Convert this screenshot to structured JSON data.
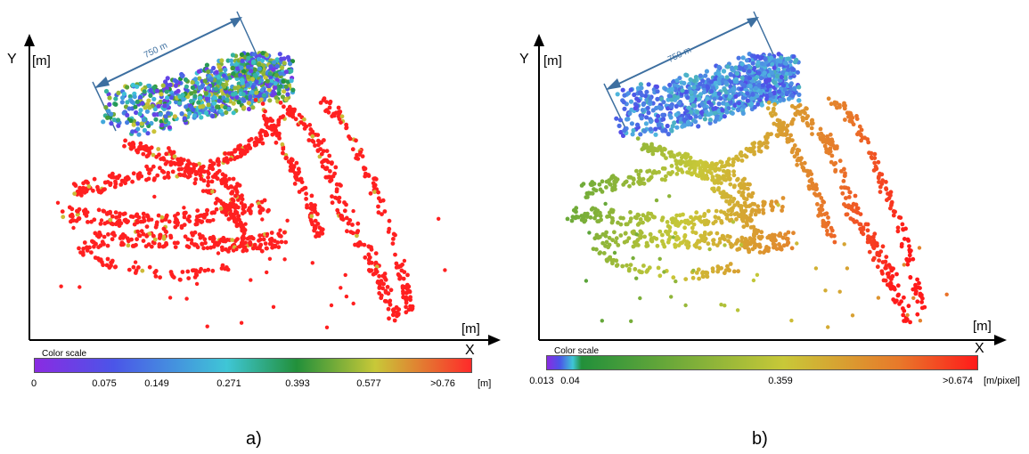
{
  "panels": [
    {
      "id": "a",
      "caption": "a)",
      "axis": {
        "x_label": "X",
        "y_label": "Y",
        "x_unit": "[m]",
        "y_unit": "[m]"
      },
      "dimension_label": "750 m",
      "color_scale": {
        "title": "Color scale",
        "unit": "[m]",
        "ticks": [
          "0",
          "0.075",
          "0.149",
          "0.271",
          "0.393",
          "0.577",
          ">0.76"
        ],
        "colors": [
          "#8a2be2",
          "#4b55e8",
          "#3fc6d6",
          "#22903a",
          "#c8c838",
          "#ff2a2a"
        ]
      }
    },
    {
      "id": "b",
      "caption": "b)",
      "axis": {
        "x_label": "X",
        "y_label": "Y",
        "x_unit": "[m]",
        "y_unit": "[m]"
      },
      "dimension_label": "750 m",
      "color_scale": {
        "title": "Color scale",
        "unit": "[m/pixel]",
        "ticks": [
          "0.013",
          "0.04",
          "0.359",
          ">0.674"
        ],
        "colors": [
          "#8a2be2",
          "#4b55e8",
          "#3fc6d6",
          "#22903a",
          "#c8c838",
          "#e8782a",
          "#ff1a1a"
        ]
      }
    }
  ]
}
